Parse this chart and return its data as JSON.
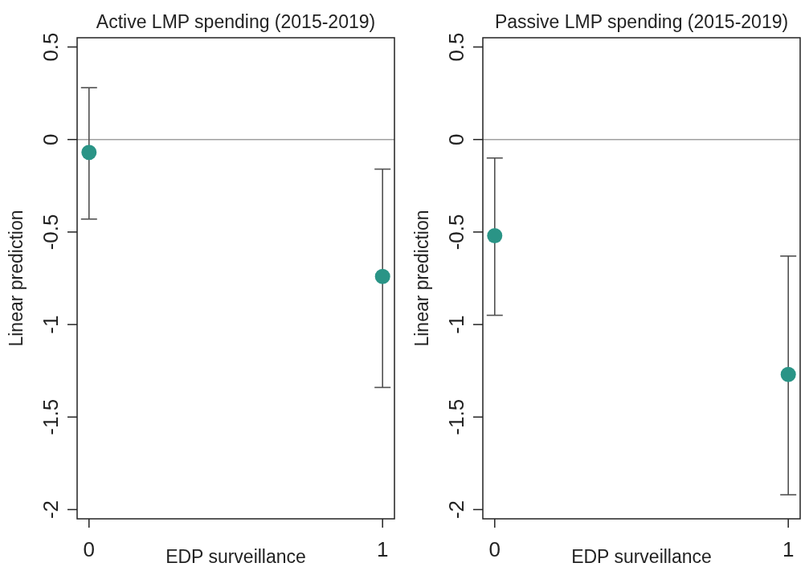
{
  "chart_data": [
    {
      "type": "scatter",
      "title": "Active LMP spending (2015-2019)",
      "xlabel": "EDP surveillance",
      "ylabel": "Linear prediction",
      "categories": [
        "0",
        "1"
      ],
      "ylim": [
        -2.05,
        0.55
      ],
      "yticks": [
        -2,
        -1.5,
        -1,
        -0.5,
        0,
        0.5
      ],
      "marker": "circle",
      "ref_lines": [
        {
          "axis": "y",
          "value": 0,
          "color": "#a0a0a0"
        }
      ],
      "series": [
        {
          "color": "#2a9486",
          "values": [
            -0.07,
            -0.74
          ],
          "errors": [
            [
              -0.43,
              0.28
            ],
            [
              -1.34,
              -0.16
            ]
          ]
        }
      ]
    },
    {
      "type": "scatter",
      "title": "Passive LMP spending (2015-2019)",
      "xlabel": "EDP surveillance",
      "ylabel": "Linear prediction",
      "categories": [
        "0",
        "1"
      ],
      "ylim": [
        -2.05,
        0.55
      ],
      "yticks": [
        -2,
        -1.5,
        -1,
        -0.5,
        0,
        0.5
      ],
      "marker": "circle",
      "ref_lines": [
        {
          "axis": "y",
          "value": 0,
          "color": "#a0a0a0"
        }
      ],
      "series": [
        {
          "color": "#2a9486",
          "values": [
            -0.52,
            -1.27
          ],
          "errors": [
            [
              -0.95,
              -0.1
            ],
            [
              -1.92,
              -0.63
            ]
          ]
        }
      ]
    }
  ]
}
